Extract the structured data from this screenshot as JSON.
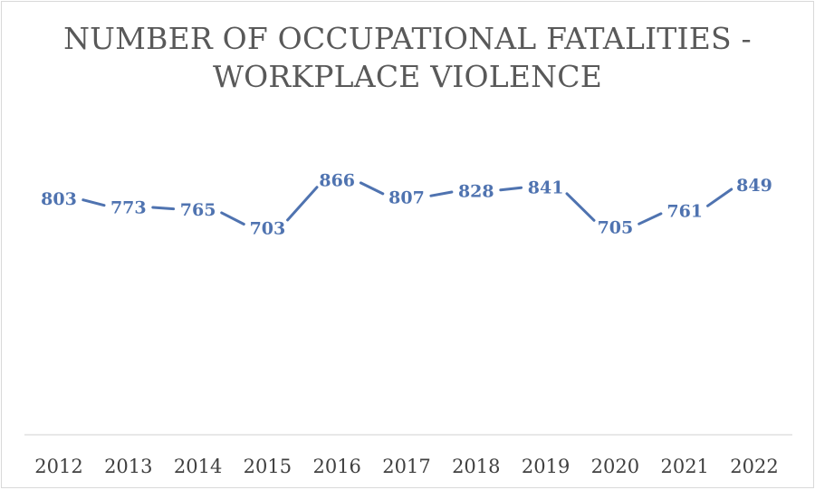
{
  "chart_data": {
    "type": "line",
    "title_lines": [
      "NUMBER OF OCCUPATIONAL FATALITIES -",
      "WORKPLACE VIOLENCE"
    ],
    "categories": [
      "2012",
      "2013",
      "2014",
      "2015",
      "2016",
      "2017",
      "2018",
      "2019",
      "2020",
      "2021",
      "2022"
    ],
    "series": [
      {
        "values": [
          803,
          773,
          765,
          703,
          866,
          807,
          828,
          841,
          705,
          761,
          849
        ],
        "color": "#4f73b0"
      }
    ],
    "data_labels": true,
    "grid": false,
    "legend": "none",
    "ylim": [
      0,
      1000
    ]
  }
}
